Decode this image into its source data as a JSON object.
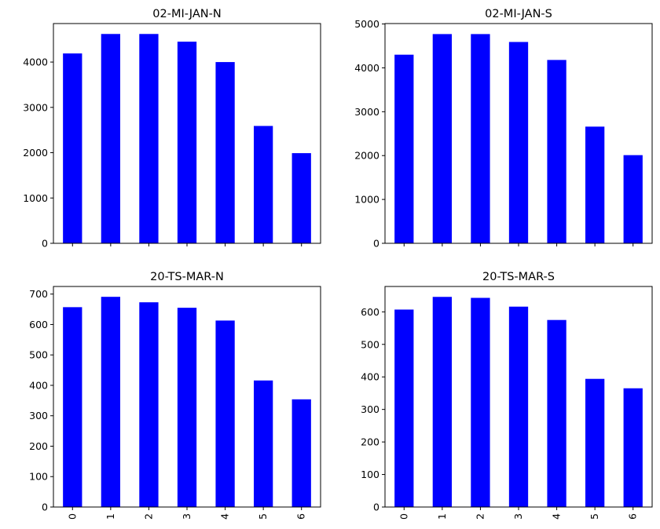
{
  "chart_data": [
    {
      "type": "bar",
      "title": "02-MI-JAN-N",
      "categories": [
        "0",
        "1",
        "2",
        "3",
        "4",
        "5",
        "6"
      ],
      "values": [
        4190,
        4620,
        4620,
        4450,
        4000,
        2590,
        1990
      ],
      "ylim": [
        0,
        4850
      ],
      "yticks": [
        "0",
        "1000",
        "2000",
        "3000",
        "4000"
      ],
      "show_xticklabels": false,
      "color": "#0000ff"
    },
    {
      "type": "bar",
      "title": "02-MI-JAN-S",
      "categories": [
        "0",
        "1",
        "2",
        "3",
        "4",
        "5",
        "6"
      ],
      "values": [
        4300,
        4770,
        4770,
        4590,
        4180,
        2660,
        2010
      ],
      "ylim": [
        0,
        5010
      ],
      "yticks": [
        "0",
        "1000",
        "2000",
        "3000",
        "4000",
        "5000"
      ],
      "show_xticklabels": false,
      "color": "#0000ff"
    },
    {
      "type": "bar",
      "title": "20-TS-MAR-N",
      "categories": [
        "0",
        "1",
        "2",
        "3",
        "4",
        "5",
        "6"
      ],
      "values": [
        657,
        691,
        673,
        655,
        613,
        416,
        354
      ],
      "ylim": [
        0,
        725
      ],
      "yticks": [
        "0",
        "100",
        "200",
        "300",
        "400",
        "500",
        "600",
        "700"
      ],
      "show_xticklabels": true,
      "color": "#0000ff"
    },
    {
      "type": "bar",
      "title": "20-TS-MAR-S",
      "categories": [
        "0",
        "1",
        "2",
        "3",
        "4",
        "5",
        "6"
      ],
      "values": [
        607,
        646,
        643,
        616,
        575,
        394,
        365
      ],
      "ylim": [
        0,
        678
      ],
      "yticks": [
        "0",
        "100",
        "200",
        "300",
        "400",
        "500",
        "600"
      ],
      "show_xticklabels": true,
      "color": "#0000ff"
    }
  ]
}
